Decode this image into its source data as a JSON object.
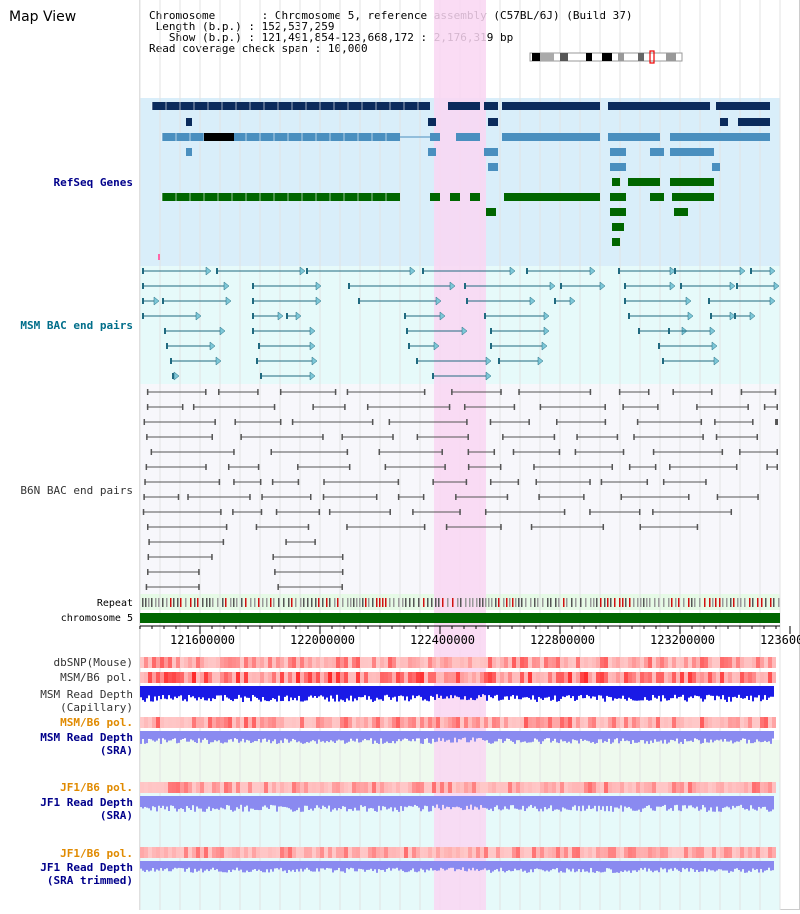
{
  "view_title": "Map View",
  "info": {
    "chromosome_key": "Chromosome",
    "chromosome_val": "Chromosome 5, reference assembly (C57BL/6J) (Build 37)",
    "length_key": "Length (b.p.)",
    "length_val": "152,537,259",
    "show_key": "Show (b.p.)",
    "show_val": "121,491,854-123,668,172 : 2,176,319 bp",
    "span_key": "Read coverage check span",
    "span_val": "10,000"
  },
  "tracks": {
    "refseq": "RefSeq Genes",
    "msm_bac": "MSM BAC end pairs",
    "b6n_bac": "B6N BAC end pairs",
    "repeat": "Repeat",
    "chromosome": "chromosome 5",
    "dbsnp": "dbSNP(Mouse)",
    "msm_pol": "MSM/B6 pol.",
    "msm_depth_cap": "MSM Read Depth\n(Capillary)",
    "msm_pol2": "MSM/B6 pol.",
    "msm_depth_sra": "MSM Read Depth\n(SRA)",
    "jf1_pol": "JF1/B6 pol.",
    "jf1_depth_sra": "JF1 Read Depth\n(SRA)",
    "jf1_pol2": "JF1/B6 pol.",
    "jf1_depth_trim": "JF1 Read Depth\n(SRA trimmed)"
  },
  "axis": {
    "ticks": [
      "121600000",
      "122000000",
      "122400000",
      "122800000",
      "123200000",
      "123600"
    ]
  },
  "colors": {
    "refseq_bg": "#d9eefa",
    "msm_bg": "#e6fafa",
    "b6n_bg": "#f7f7fb",
    "highlight": "#f9d6f2",
    "gene_navy": "#0b2b5c",
    "gene_steel": "#4a8fbf",
    "gene_green": "#006600",
    "bac_teal": "#206a80",
    "bac_gray": "#555555",
    "chrom_green": "#006600",
    "snp_red": "#f08080",
    "depth_blue": "#1a1ae6",
    "depth_lilac": "#8a8af0"
  }
}
